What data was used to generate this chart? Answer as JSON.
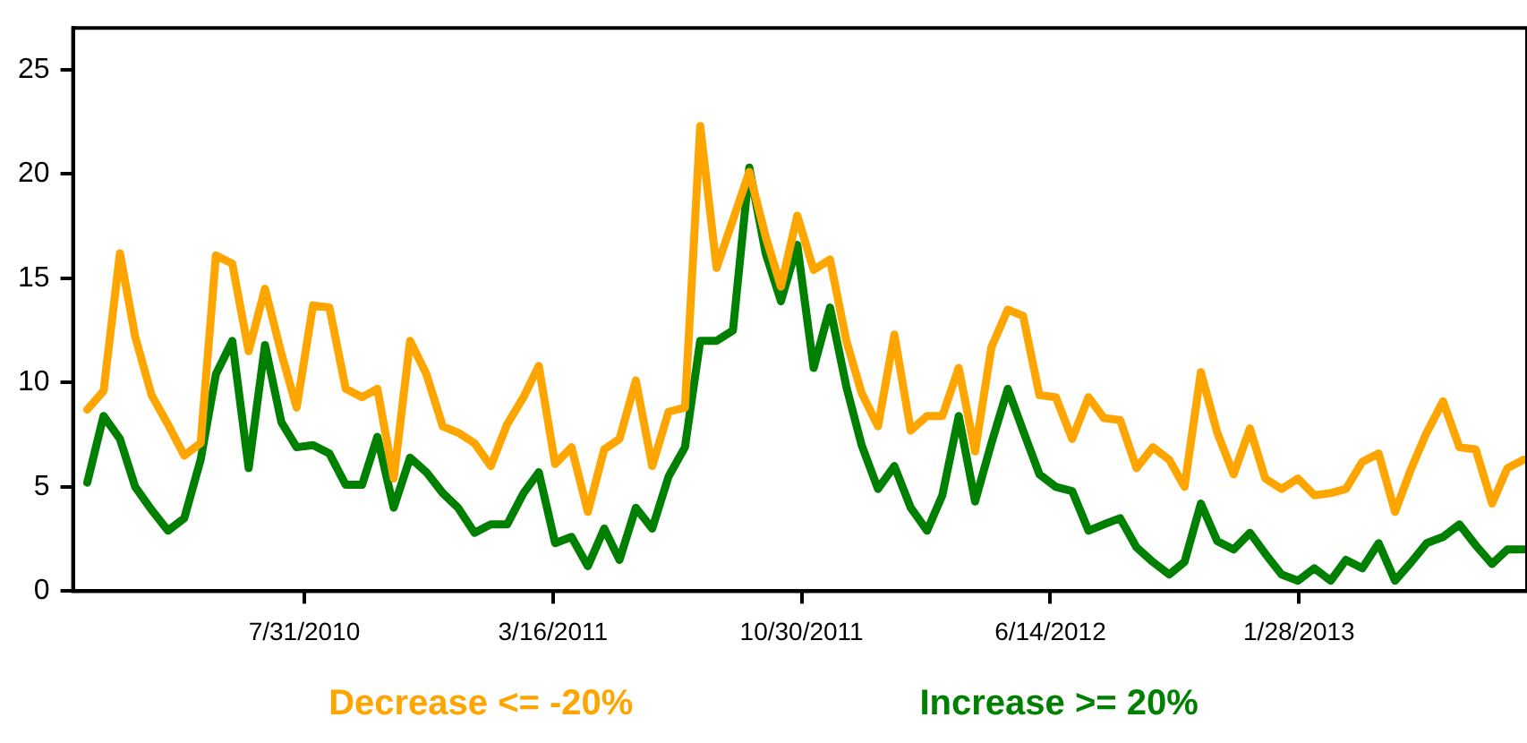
{
  "chart_data": {
    "type": "line",
    "x": [
      "2010-01-13",
      "2010-01-28",
      "2010-02-12",
      "2010-02-26",
      "2010-03-13",
      "2010-03-28",
      "2010-04-12",
      "2010-04-27",
      "2010-05-11",
      "2010-05-26",
      "2010-06-10",
      "2010-06-25",
      "2010-07-10",
      "2010-07-24",
      "2010-08-08",
      "2010-08-23",
      "2010-09-07",
      "2010-09-22",
      "2010-10-06",
      "2010-10-21",
      "2010-11-05",
      "2010-11-20",
      "2010-12-05",
      "2010-12-19",
      "2011-01-03",
      "2011-01-18",
      "2011-02-02",
      "2011-02-17",
      "2011-03-03",
      "2011-03-18",
      "2011-04-02",
      "2011-04-17",
      "2011-05-02",
      "2011-05-16",
      "2011-05-31",
      "2011-06-15",
      "2011-06-30",
      "2011-07-15",
      "2011-07-29",
      "2011-08-13",
      "2011-08-28",
      "2011-09-12",
      "2011-09-27",
      "2011-10-11",
      "2011-10-26",
      "2011-11-10",
      "2011-11-25",
      "2011-12-10",
      "2011-12-24",
      "2012-01-08",
      "2012-01-23",
      "2012-02-07",
      "2012-02-22",
      "2012-03-07",
      "2012-03-22",
      "2012-04-06",
      "2012-04-21",
      "2012-05-06",
      "2012-05-20",
      "2012-06-04",
      "2012-06-19",
      "2012-07-04",
      "2012-07-19",
      "2012-08-02",
      "2012-08-17",
      "2012-09-01",
      "2012-09-16",
      "2012-10-01",
      "2012-10-15",
      "2012-10-30",
      "2012-11-14",
      "2012-11-29",
      "2012-12-14",
      "2012-12-28",
      "2013-01-12",
      "2013-01-27",
      "2013-02-11",
      "2013-02-26",
      "2013-03-12",
      "2013-03-27",
      "2013-04-11",
      "2013-04-26",
      "2013-05-11",
      "2013-05-25",
      "2013-06-09",
      "2013-06-24",
      "2013-07-09",
      "2013-07-24",
      "2013-08-07",
      "2013-08-22"
    ],
    "series": [
      {
        "name": "Decrease <= -20%",
        "color": "#ffa500",
        "values": [
          8.7,
          9.6,
          16.2,
          12.2,
          9.4,
          8.0,
          6.5,
          7.1,
          16.1,
          15.7,
          11.5,
          14.5,
          11.4,
          8.8,
          13.7,
          13.6,
          9.7,
          9.3,
          9.7,
          5.4,
          12.0,
          10.4,
          7.9,
          7.6,
          7.1,
          6.0,
          8.0,
          9.3,
          10.8,
          6.1,
          6.9,
          3.8,
          6.8,
          7.3,
          10.1,
          6.0,
          8.6,
          8.8,
          22.3,
          15.5,
          17.8,
          20.1,
          17.0,
          14.6,
          18.0,
          15.4,
          15.9,
          12.0,
          9.5,
          7.9,
          12.3,
          7.7,
          8.4,
          8.4,
          10.7,
          6.7,
          11.7,
          13.5,
          13.2,
          9.4,
          9.3,
          7.3,
          9.3,
          8.3,
          8.2,
          5.9,
          6.9,
          6.3,
          5.0,
          10.5,
          7.6,
          5.6,
          7.8,
          5.4,
          4.9,
          5.4,
          4.6,
          4.7,
          4.9,
          6.2,
          6.6,
          3.8,
          5.9,
          7.6,
          9.1,
          6.9,
          6.8,
          4.2,
          5.9,
          6.3
        ]
      },
      {
        "name": "Increase >= 20%",
        "color": "#008000",
        "values": [
          5.2,
          8.4,
          7.3,
          5.0,
          3.9,
          2.9,
          3.5,
          6.3,
          10.4,
          12.0,
          5.9,
          11.8,
          8.1,
          6.9,
          7.0,
          6.6,
          5.1,
          5.1,
          7.4,
          4.0,
          6.4,
          5.7,
          4.7,
          4.0,
          2.8,
          3.2,
          3.2,
          4.7,
          5.7,
          2.3,
          2.6,
          1.2,
          3.0,
          1.5,
          4.0,
          3.0,
          5.5,
          6.9,
          12.0,
          12.0,
          12.5,
          20.3,
          16.2,
          13.9,
          16.6,
          10.7,
          13.6,
          9.8,
          7.0,
          4.9,
          6.0,
          4.0,
          2.9,
          4.6,
          8.4,
          4.3,
          7.1,
          9.7,
          7.7,
          5.6,
          5.0,
          4.8,
          2.9,
          3.2,
          3.5,
          2.1,
          1.4,
          0.8,
          1.4,
          4.2,
          2.4,
          2.0,
          2.8,
          1.8,
          0.8,
          0.5,
          1.1,
          0.5,
          1.5,
          1.1,
          2.3,
          0.5,
          1.4,
          2.3,
          2.6,
          3.2,
          2.2,
          1.3,
          2.0,
          2.0
        ]
      }
    ],
    "xlim": [
      "2009-12-31",
      "2013-08-25"
    ],
    "xticks": [
      {
        "value": "2010-07-31",
        "label": "7/31/2010"
      },
      {
        "value": "2011-03-16",
        "label": "3/16/2011"
      },
      {
        "value": "2011-10-30",
        "label": "10/30/2011"
      },
      {
        "value": "2012-06-14",
        "label": "6/14/2012"
      },
      {
        "value": "2013-01-28",
        "label": "1/28/2013"
      }
    ],
    "ylim": [
      0,
      27
    ],
    "yticks": [
      0,
      5,
      10,
      15,
      20,
      25
    ],
    "grid": false,
    "legend": "bottom",
    "marker": "none",
    "line_style": "solid"
  }
}
